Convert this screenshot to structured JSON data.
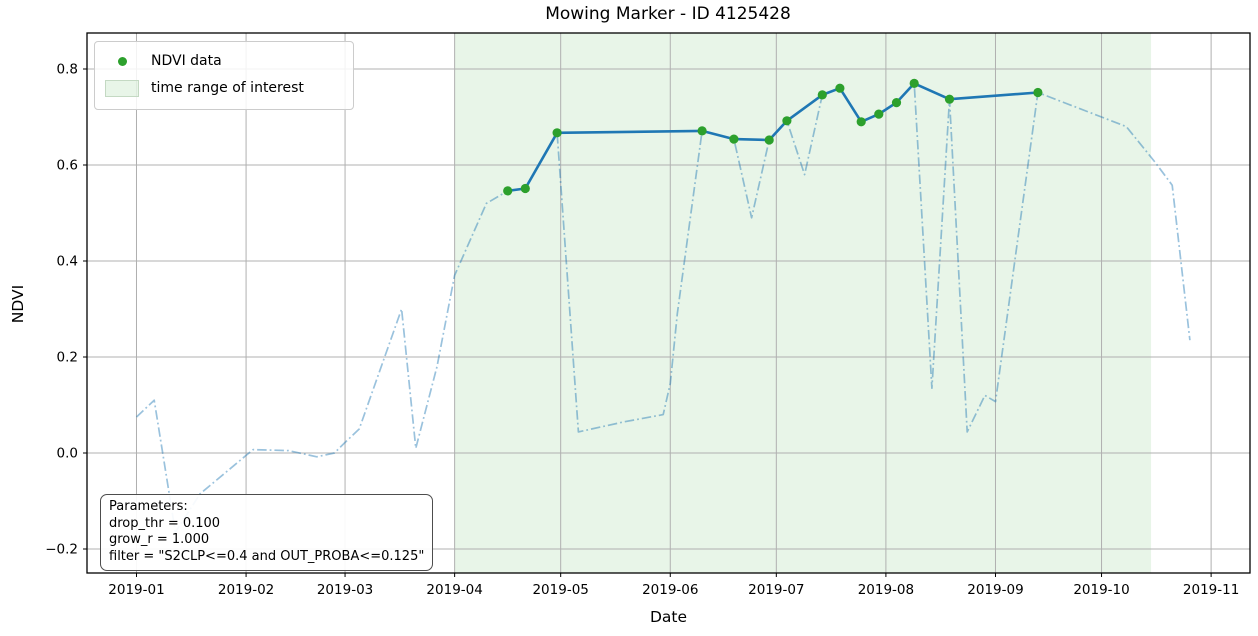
{
  "title": "Mowing Marker - ID 4125428",
  "legend": {
    "ndvi_label": "NDVI data",
    "range_label": "time range of interest"
  },
  "params_box": {
    "line1": "Parameters:",
    "line2": "drop_thr = 0.100",
    "line3": "grow_r = 1.000",
    "line4": "filter = \"S2CLP<=0.4 and OUT_PROBA<=0.125\""
  },
  "colors": {
    "filtered_line": "#1f77b4",
    "marker_green": "#2ca02c",
    "raw_line": "#1f77b4",
    "raw_line_opacity": 0.45,
    "shade_green": "#2ca02c",
    "shade_opacity": 0.11,
    "grid": "#b0b0b0",
    "spine": "#000000"
  },
  "chart_data": {
    "type": "line",
    "title": "Mowing Marker - ID 4125428",
    "xlabel": "Date",
    "ylabel": "NDVI",
    "xlim": [
      "2018-12-18",
      "2019-11-12"
    ],
    "ylim": [
      -0.25,
      0.875
    ],
    "grid": true,
    "legend_position": "upper left",
    "x_ticks": [
      {
        "label": "2019-01",
        "date": "2019-01-01"
      },
      {
        "label": "2019-02",
        "date": "2019-02-01"
      },
      {
        "label": "2019-03",
        "date": "2019-03-01"
      },
      {
        "label": "2019-04",
        "date": "2019-04-01"
      },
      {
        "label": "2019-05",
        "date": "2019-05-01"
      },
      {
        "label": "2019-06",
        "date": "2019-06-01"
      },
      {
        "label": "2019-07",
        "date": "2019-07-01"
      },
      {
        "label": "2019-08",
        "date": "2019-08-01"
      },
      {
        "label": "2019-09",
        "date": "2019-09-01"
      },
      {
        "label": "2019-10",
        "date": "2019-10-01"
      },
      {
        "label": "2019-11",
        "date": "2019-11-01"
      }
    ],
    "y_ticks": [
      {
        "label": "−0.2",
        "value": -0.2
      },
      {
        "label": "0.0",
        "value": 0.0
      },
      {
        "label": "0.2",
        "value": 0.2
      },
      {
        "label": "0.4",
        "value": 0.4
      },
      {
        "label": "0.6",
        "value": 0.6
      },
      {
        "label": "0.8",
        "value": 0.8
      }
    ],
    "shaded_region": {
      "label": "time range of interest",
      "start": "2019-04-01",
      "end": "2019-10-15"
    },
    "series": [
      {
        "name": "raw NDVI (unfiltered, dash-dot)",
        "style": "dashdot",
        "points": [
          [
            "2019-01-01",
            0.075
          ],
          [
            "2019-01-06",
            0.11
          ],
          [
            "2019-01-12",
            -0.165
          ],
          [
            "2019-01-19",
            -0.085
          ],
          [
            "2019-02-01",
            -0.005
          ],
          [
            "2019-02-03",
            0.007
          ],
          [
            "2019-02-13",
            0.005
          ],
          [
            "2019-02-21",
            -0.008
          ],
          [
            "2019-02-26",
            0.0
          ],
          [
            "2019-03-01",
            0.022
          ],
          [
            "2019-03-05",
            0.05
          ],
          [
            "2019-03-17",
            0.3
          ],
          [
            "2019-03-21",
            0.01
          ],
          [
            "2019-03-27",
            0.18
          ],
          [
            "2019-04-01",
            0.37
          ],
          [
            "2019-04-10",
            0.52
          ],
          [
            "2019-04-16",
            0.546
          ],
          [
            "2019-04-21",
            0.551
          ],
          [
            "2019-04-30",
            0.667
          ],
          [
            "2019-05-06",
            0.044
          ],
          [
            "2019-05-19",
            0.065
          ],
          [
            "2019-05-30",
            0.08
          ],
          [
            "2019-06-01",
            0.145
          ],
          [
            "2019-06-03",
            0.29
          ],
          [
            "2019-06-10",
            0.671
          ],
          [
            "2019-06-19",
            0.654
          ],
          [
            "2019-06-24",
            0.49
          ],
          [
            "2019-06-29",
            0.652
          ],
          [
            "2019-07-04",
            0.692
          ],
          [
            "2019-07-09",
            0.58
          ],
          [
            "2019-07-14",
            0.746
          ],
          [
            "2019-07-19",
            0.76
          ],
          [
            "2019-07-25",
            0.69
          ],
          [
            "2019-07-30",
            0.706
          ],
          [
            "2019-08-04",
            0.73
          ],
          [
            "2019-08-09",
            0.77
          ],
          [
            "2019-08-14",
            0.135
          ],
          [
            "2019-08-19",
            0.737
          ],
          [
            "2019-08-24",
            0.044
          ],
          [
            "2019-08-29",
            0.12
          ],
          [
            "2019-09-01",
            0.107
          ],
          [
            "2019-09-13",
            0.751
          ],
          [
            "2019-10-01",
            0.7
          ],
          [
            "2019-10-08",
            0.68
          ],
          [
            "2019-10-16",
            0.607
          ],
          [
            "2019-10-21",
            0.558
          ],
          [
            "2019-10-26",
            0.235
          ]
        ]
      },
      {
        "name": "NDVI data",
        "style": "solid_with_markers",
        "points": [
          [
            "2019-04-16",
            0.546
          ],
          [
            "2019-04-21",
            0.551
          ],
          [
            "2019-04-30",
            0.667
          ],
          [
            "2019-06-10",
            0.671
          ],
          [
            "2019-06-19",
            0.654
          ],
          [
            "2019-06-29",
            0.652
          ],
          [
            "2019-07-04",
            0.692
          ],
          [
            "2019-07-14",
            0.746
          ],
          [
            "2019-07-19",
            0.76
          ],
          [
            "2019-07-25",
            0.69
          ],
          [
            "2019-07-30",
            0.706
          ],
          [
            "2019-08-04",
            0.73
          ],
          [
            "2019-08-09",
            0.77
          ],
          [
            "2019-08-19",
            0.737
          ],
          [
            "2019-09-13",
            0.751
          ]
        ]
      }
    ]
  }
}
